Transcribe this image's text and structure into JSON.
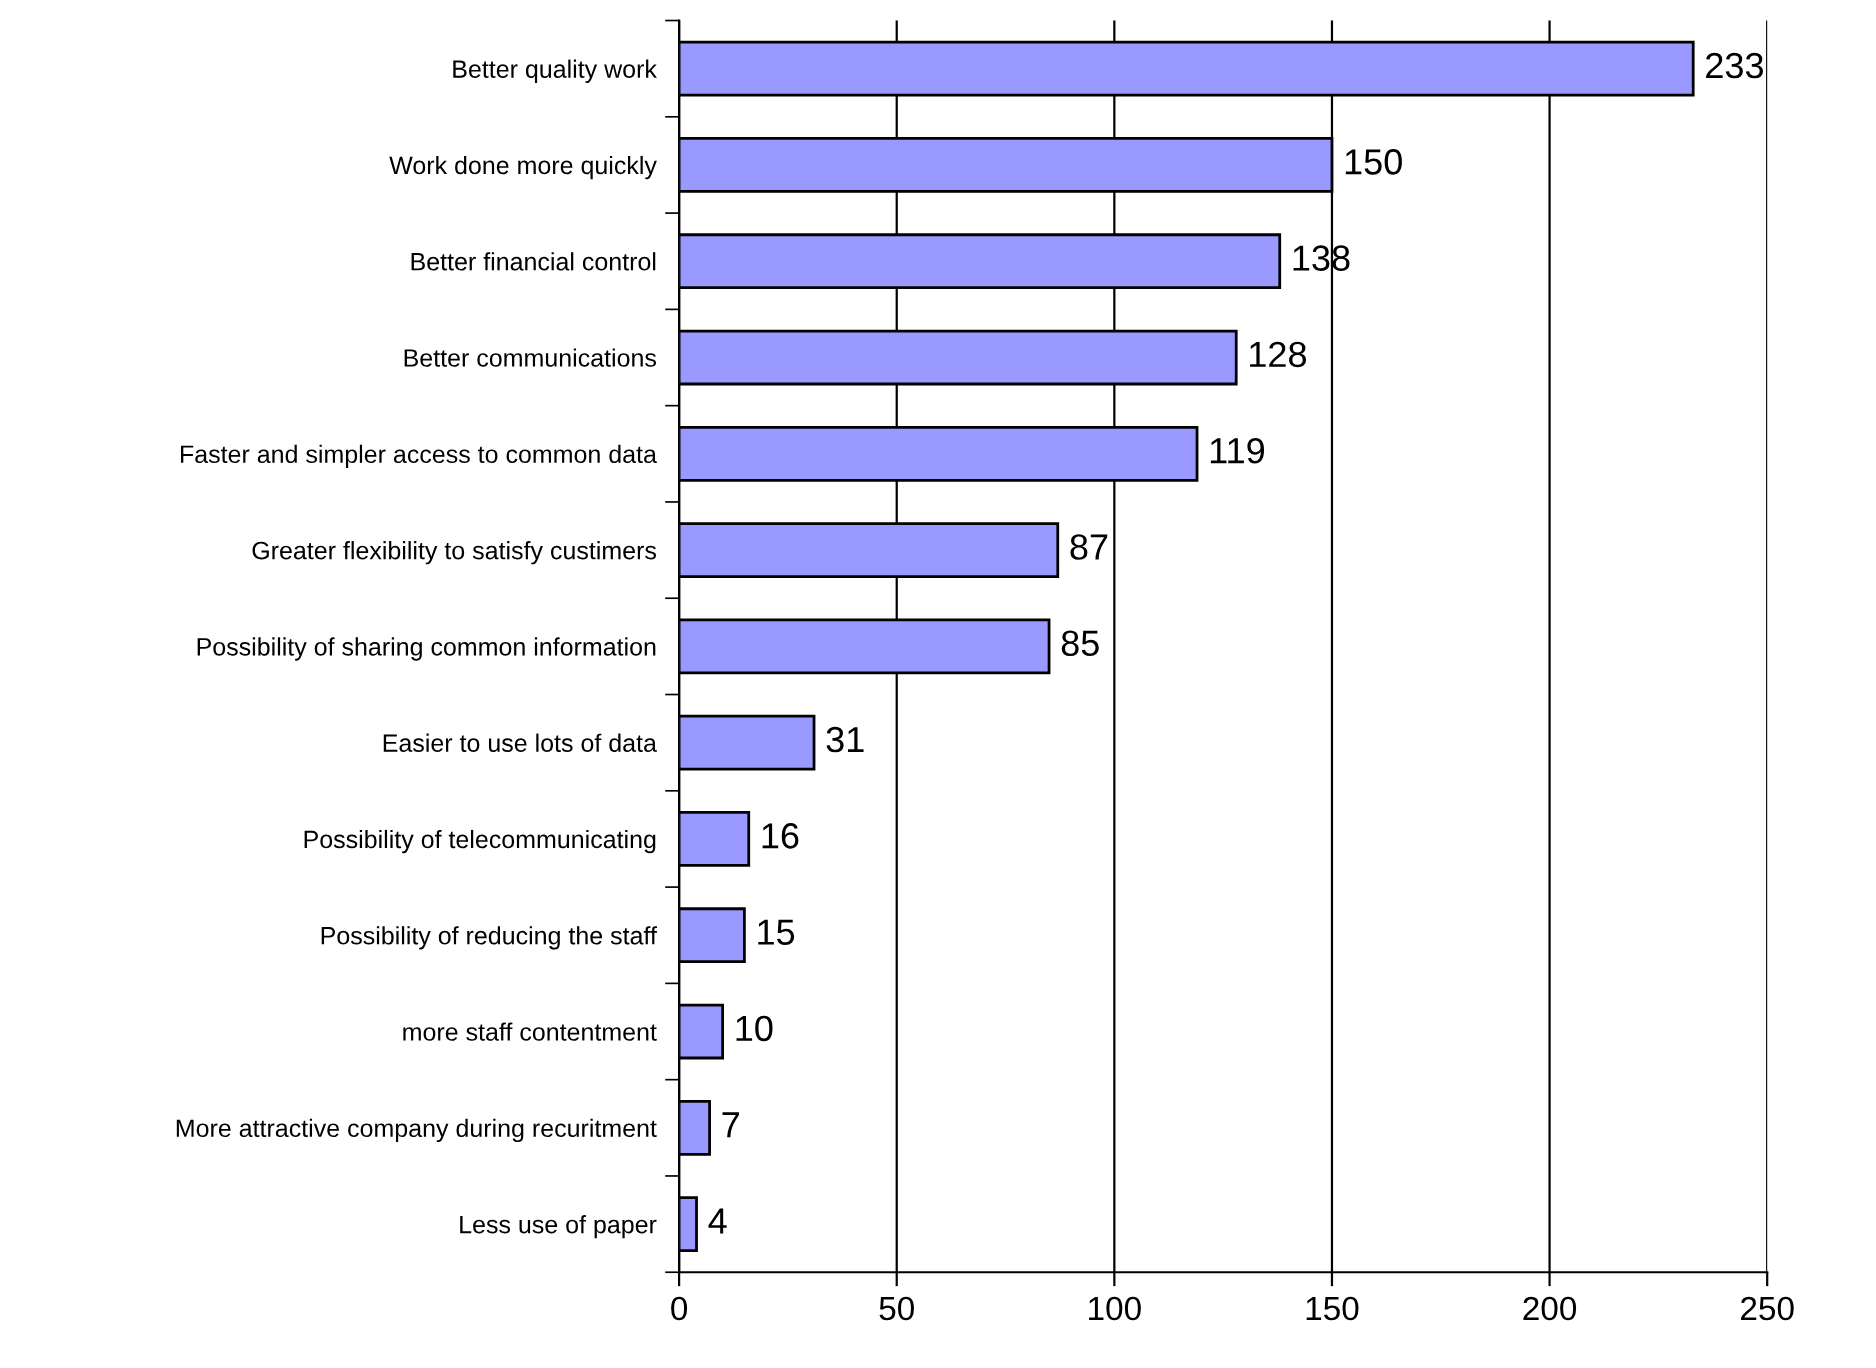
{
  "chart_data": {
    "type": "bar",
    "orientation": "horizontal",
    "categories": [
      "Better quality work",
      "Work done more quickly",
      "Better financial control",
      "Better communications",
      "Faster and simpler access to common data",
      "Greater flexibility to satisfy custimers",
      "Possibility of sharing common information",
      "Easier to use lots of data",
      "Possibility of telecommunicating",
      "Possibility of reducing the staff",
      "more staff contentment",
      "More attractive company during recuritment",
      "Less use of paper"
    ],
    "values": [
      233,
      150,
      138,
      128,
      119,
      87,
      85,
      31,
      16,
      15,
      10,
      7,
      4
    ],
    "color": "#9999ff",
    "xlim": [
      0,
      250
    ],
    "xticks": [
      0,
      50,
      100,
      150,
      200,
      250
    ],
    "grid": "x",
    "data_labels": true,
    "legend": false
  }
}
